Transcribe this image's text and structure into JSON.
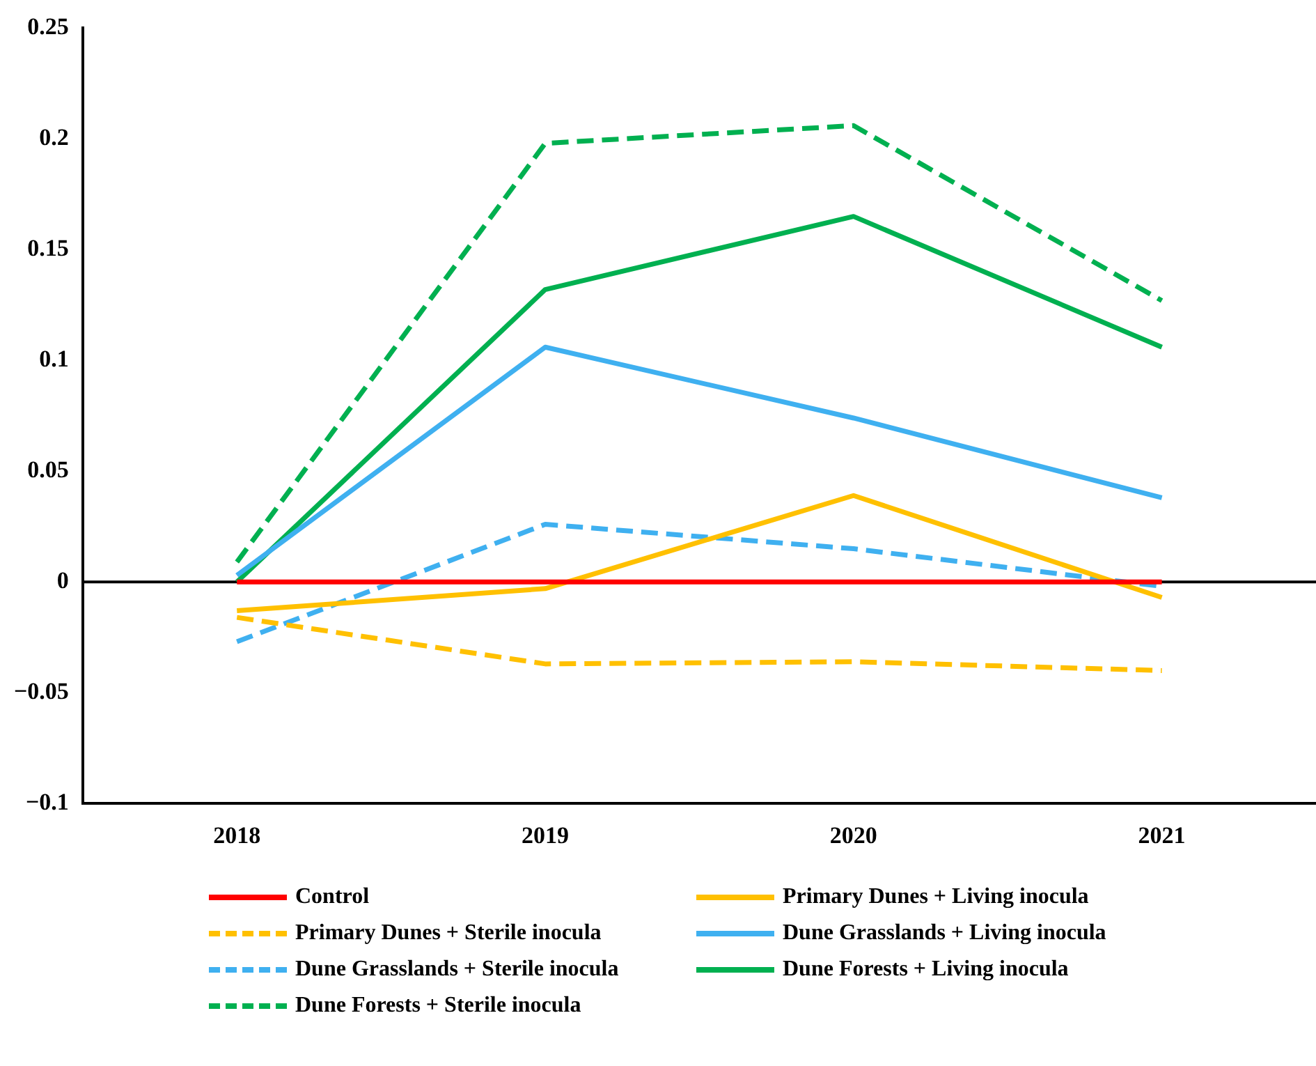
{
  "chart_data": {
    "type": "line",
    "categories": [
      "2018",
      "2019",
      "2020",
      "2021"
    ],
    "ylim": [
      -0.1,
      0.25
    ],
    "yticks": [
      {
        "value": -0.1,
        "label": "−0.1"
      },
      {
        "value": -0.05,
        "label": "−0.05"
      },
      0,
      0.05,
      0.1,
      0.15,
      0.2,
      0.25
    ],
    "grid": false,
    "legend": "bottom",
    "marker": "none",
    "ref_lines": [
      {
        "axis": "y",
        "value": 0,
        "color": "#000000"
      }
    ],
    "series": [
      {
        "name": "Control",
        "color": "#ff0000",
        "line_style": "solid",
        "values": [
          0,
          0,
          0,
          0
        ]
      },
      {
        "name": "Primary Dunes + Living inocula",
        "color": "#ffc000",
        "line_style": "solid",
        "values": [
          -0.013,
          -0.003,
          0.039,
          -0.007
        ]
      },
      {
        "name": "Primary Dunes + Sterile inocula",
        "color": "#ffc000",
        "line_style": "dashed",
        "values": [
          -0.016,
          -0.037,
          -0.036,
          -0.04
        ]
      },
      {
        "name": "Dune Grasslands + Living inocula",
        "color": "#3fb0f0",
        "line_style": "solid",
        "values": [
          0.003,
          0.106,
          0.074,
          0.038
        ]
      },
      {
        "name": "Dune Grasslands + Sterile inocula",
        "color": "#3fb0f0",
        "line_style": "dashed",
        "values": [
          -0.027,
          0.026,
          0.015,
          -0.002
        ]
      },
      {
        "name": "Dune Forests + Living inocula",
        "color": "#00b050",
        "line_style": "solid",
        "values": [
          0,
          0.132,
          0.165,
          0.106
        ]
      },
      {
        "name": "Dune Forests + Sterile inocula",
        "color": "#00b050",
        "line_style": "dashed",
        "values": [
          0.009,
          0.198,
          0.206,
          0.127
        ]
      }
    ]
  }
}
